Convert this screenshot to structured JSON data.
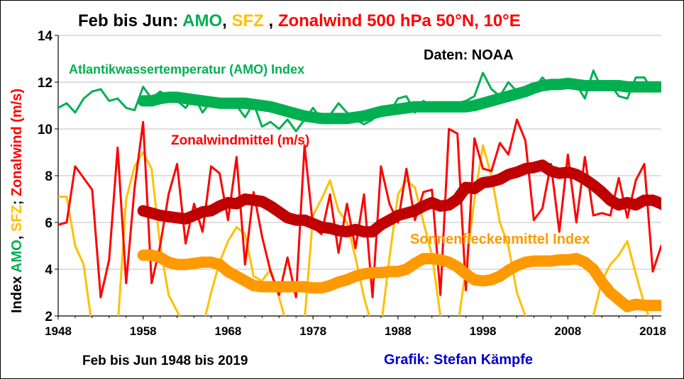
{
  "chart_data": {
    "type": "line",
    "title": {
      "prefix": "Feb bis Jun: ",
      "amo": "AMO",
      "sep1": ", ",
      "sfz": "SFZ",
      "sep2": " , ",
      "zonal": "Zonalwind 500 hPa 50°N, 10°E"
    },
    "ylabel": {
      "prefix": "Index ",
      "amo": "AMO",
      "sep1": ", ",
      "sfz": "SFZ",
      "sep2": "; ",
      "zonal": "Zonalwind (m/s)"
    },
    "xlabel": "",
    "ylim": [
      2,
      14
    ],
    "xlim": [
      1948,
      2019
    ],
    "yticks": [
      2,
      4,
      6,
      8,
      10,
      12,
      14
    ],
    "xticks": [
      1948,
      1958,
      1968,
      1978,
      1988,
      1998,
      2008,
      2018
    ],
    "grid": "horizontal",
    "annotations": {
      "amo": "Atlantikwassertemperatur (AMO) Index",
      "zonal": "Zonalwindmittel (m/s)",
      "sfz": "Sonnenfleckenmittel Index",
      "source": "Daten: NOAA",
      "period": "Feb bis Jun 1948 bis 2019",
      "credit": "Grafik: Stefan Kämpfe"
    },
    "colors": {
      "amo": "#00b050",
      "sfz": "#ffc000",
      "sfz_smooth": "#ff9900",
      "zonal": "#ff0000",
      "zonal_smooth": "#c00000",
      "credit": "#0000cc",
      "text": "#000000"
    },
    "series": [
      {
        "id": "amo",
        "style": "thin",
        "x_start": 1948,
        "values": [
          10.9,
          11.1,
          10.7,
          11.3,
          11.6,
          11.7,
          11.2,
          11.3,
          10.9,
          10.8,
          11.8,
          11.3,
          11.6,
          11.4,
          11.2,
          10.9,
          11.4,
          10.7,
          11.2,
          11.3,
          11.2,
          11.0,
          10.5,
          11.1,
          10.1,
          10.3,
          10.0,
          10.4,
          9.9,
          10.4,
          10.9,
          10.4,
          10.6,
          11.1,
          10.7,
          10.4,
          10.2,
          10.4,
          10.8,
          10.7,
          11.3,
          11.4,
          10.7,
          11.2,
          10.9,
          11.1,
          10.8,
          11.1,
          11.2,
          11.4,
          12.4,
          11.7,
          11.4,
          12.0,
          11.6,
          11.8,
          11.7,
          12.2,
          11.8,
          12.0,
          11.8,
          11.9,
          11.3,
          12.5,
          11.7,
          11.9,
          11.4,
          11.3,
          12.2,
          12.2,
          11.6,
          11.7
        ]
      },
      {
        "id": "amo_smooth",
        "style": "thick",
        "x_start": 1958,
        "values": [
          11.2,
          11.2,
          11.3,
          11.35,
          11.35,
          11.3,
          11.25,
          11.2,
          11.15,
          11.1,
          11.1,
          11.1,
          11.1,
          11.05,
          11.0,
          10.95,
          10.85,
          10.75,
          10.65,
          10.55,
          10.5,
          10.45,
          10.45,
          10.45,
          10.45,
          10.5,
          10.55,
          10.65,
          10.75,
          10.8,
          10.85,
          10.9,
          10.95,
          10.95,
          10.95,
          10.95,
          10.95,
          10.95,
          10.95,
          11.0,
          11.1,
          11.2,
          11.3,
          11.4,
          11.5,
          11.6,
          11.75,
          11.85,
          11.9,
          11.9,
          11.95,
          11.9,
          11.85,
          11.85,
          11.85,
          11.85,
          11.85,
          11.8,
          11.8,
          11.8,
          11.8,
          11.8
        ]
      },
      {
        "id": "zonal",
        "style": "thin",
        "x_start": 1948,
        "values": [
          5.9,
          6.0,
          8.4,
          7.9,
          7.4,
          2.8,
          4.4,
          9.2,
          3.4,
          7.5,
          10.3,
          3.4,
          5.0,
          7.2,
          8.5,
          5.1,
          6.8,
          5.6,
          8.4,
          8.1,
          6.1,
          8.8,
          4.2,
          7.3,
          5.4,
          3.9,
          2.9,
          4.5,
          2.8,
          9.3,
          5.8,
          5.5,
          7.2,
          4.7,
          6.8,
          4.9,
          7.2,
          2.8,
          8.4,
          6.8,
          6.0,
          8.3,
          6.1,
          7.3,
          7.4,
          2.9,
          10.0,
          9.8,
          3.1,
          9.6,
          8.3,
          8.2,
          9.4,
          8.9,
          10.4,
          9.5,
          6.1,
          6.6,
          8.5,
          5.6,
          8.9,
          6.0,
          8.8,
          6.3,
          6.4,
          6.3,
          7.9,
          6.2,
          7.8,
          8.5,
          3.9,
          5.0
        ]
      },
      {
        "id": "zonal_smooth",
        "style": "thick",
        "x_start": 1958,
        "values": [
          6.5,
          6.4,
          6.3,
          6.25,
          6.2,
          6.15,
          6.3,
          6.45,
          6.5,
          6.7,
          6.85,
          6.8,
          7.0,
          6.95,
          6.9,
          6.7,
          6.45,
          6.2,
          6.1,
          6.1,
          5.95,
          5.8,
          5.75,
          5.65,
          5.6,
          5.7,
          5.6,
          5.6,
          5.9,
          6.1,
          6.3,
          6.4,
          6.5,
          6.7,
          6.85,
          6.7,
          6.75,
          7.0,
          7.5,
          7.45,
          7.7,
          7.75,
          7.85,
          8.05,
          8.15,
          8.3,
          8.35,
          8.45,
          8.2,
          8.1,
          8.15,
          8.05,
          7.85,
          7.6,
          7.3,
          6.95,
          6.75,
          6.85,
          6.75,
          6.95,
          6.95,
          6.8,
          6.6,
          6.4
        ]
      },
      {
        "id": "sfz",
        "style": "thin",
        "x_start": 1948,
        "values": [
          7.1,
          7.1,
          5.0,
          4.2,
          1.5,
          1.5,
          1.5,
          1.5,
          7.0,
          8.4,
          9.0,
          8.3,
          5.0,
          2.9,
          2.2,
          1.5,
          1.5,
          1.5,
          3.0,
          4.3,
          5.2,
          5.8,
          5.5,
          3.7,
          3.5,
          4.0,
          2.8,
          1.5,
          1.5,
          1.8,
          6.3,
          7.0,
          7.8,
          6.5,
          6.0,
          4.5,
          2.8,
          1.5,
          1.5,
          4.5,
          7.2,
          7.8,
          7.5,
          6.0,
          4.6,
          2.0,
          1.5,
          1.5,
          4.0,
          7.0,
          9.3,
          8.0,
          6.0,
          5.0,
          3.0,
          2.0,
          1.5,
          1.5,
          1.5,
          1.5,
          1.5,
          1.5,
          1.5,
          2.0,
          3.5,
          4.2,
          4.6,
          5.2,
          3.8,
          2.5,
          1.5,
          1.5
        ]
      },
      {
        "id": "sfz_smooth",
        "style": "thick",
        "x_start": 1958,
        "values": [
          4.6,
          4.6,
          4.5,
          4.3,
          4.2,
          4.2,
          4.25,
          4.3,
          4.3,
          4.2,
          3.9,
          3.7,
          3.5,
          3.3,
          3.25,
          3.25,
          3.25,
          3.25,
          3.25,
          3.25,
          3.2,
          3.2,
          3.3,
          3.45,
          3.55,
          3.7,
          3.8,
          3.85,
          3.85,
          3.9,
          3.9,
          4.0,
          4.25,
          4.45,
          4.45,
          4.4,
          4.3,
          4.1,
          3.8,
          3.55,
          3.5,
          3.55,
          3.7,
          3.95,
          4.15,
          4.3,
          4.35,
          4.35,
          4.35,
          4.4,
          4.4,
          4.45,
          4.3,
          4.0,
          3.45,
          3.0,
          2.7,
          2.4,
          2.5,
          2.45,
          2.45,
          2.45,
          2.4
        ]
      }
    ]
  }
}
